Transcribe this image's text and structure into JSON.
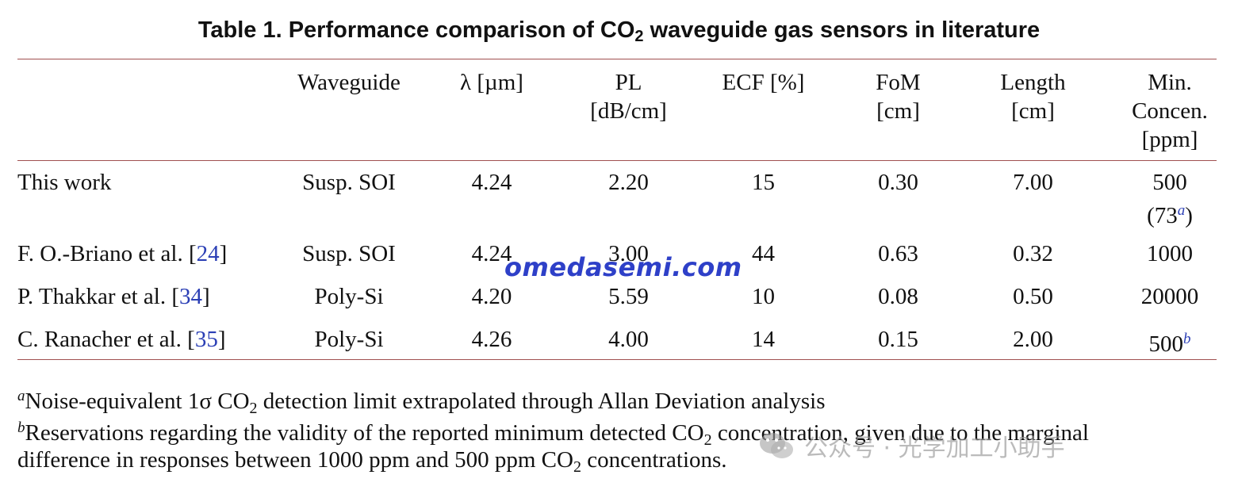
{
  "caption": {
    "prefix": "Table  1.  Performance comparison of CO",
    "sub": "2",
    "suffix": " waveguide gas sensors in literature"
  },
  "headers": {
    "waveguide": [
      "Waveguide"
    ],
    "lambda": [
      "λ [µm]"
    ],
    "pl": [
      "PL",
      "[dB/cm]"
    ],
    "ecf": [
      "ECF [%]"
    ],
    "fom": [
      "FoM",
      "[cm]"
    ],
    "length": [
      "Length",
      "[cm]"
    ],
    "minconc": [
      "Min.",
      "Concen.",
      "[ppm]"
    ]
  },
  "rows": [
    {
      "work": "This work",
      "ref": "",
      "waveguide": "Susp. SOI",
      "lambda": "4.24",
      "pl": "2.20",
      "ecf": "15",
      "fom": "0.30",
      "length": "7.00",
      "minconc": "500",
      "minconc_note": "(73",
      "minconc_sup": "a",
      "minconc_close": ")"
    },
    {
      "work": "F. O.-Briano et al. [",
      "ref": "24",
      "close": "]",
      "waveguide": "Susp. SOI",
      "lambda": "4.24",
      "pl": "3.00",
      "ecf": "44",
      "fom": "0.63",
      "length": "0.32",
      "minconc": "1000"
    },
    {
      "work": "P. Thakkar et al. [",
      "ref": "34",
      "close": "]",
      "waveguide": "Poly-Si",
      "lambda": "4.20",
      "pl": "5.59",
      "ecf": "10",
      "fom": "0.08",
      "length": "0.50",
      "minconc": "20000"
    },
    {
      "work": "C. Ranacher et al. [",
      "ref": "35",
      "close": "]",
      "waveguide": "Poly-Si",
      "lambda": "4.26",
      "pl": "4.00",
      "ecf": "14",
      "fom": "0.15",
      "length": "2.00",
      "minconc": "500",
      "minconc_sup": "b"
    }
  ],
  "footnotes": {
    "a": {
      "mark": "a",
      "pre": "Noise-equivalent 1σ CO",
      "sub": "2",
      "post": " detection limit extrapolated through Allan Deviation analysis"
    },
    "b": {
      "mark": "b",
      "line1_pre": "Reservations regarding the validity of the reported minimum detected CO",
      "line1_sub": "2",
      "line1_post": " concentration, given due to the marginal",
      "line2_pre": "difference in responses between 1000 ppm and 500 ppm CO",
      "line2_sub": "2",
      "line2_post": " concentrations."
    }
  },
  "watermarks": {
    "site": "omedasemi.com",
    "wechat": "公众号 · 光学加工小助手"
  },
  "colors": {
    "rule": "#a05050",
    "ref": "#2b3fb5",
    "watermark": "#2e40c8"
  }
}
